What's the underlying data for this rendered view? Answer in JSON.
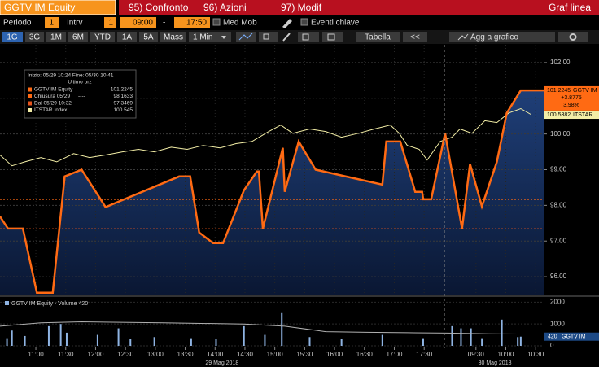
{
  "header": {
    "ticker": "GGTV IM Equity",
    "menu": [
      "95) Confronto",
      "96) Azioni",
      "97) Modif"
    ],
    "view": "Graf linea"
  },
  "toolbar": {
    "periodo": "Periodo",
    "periodo_value": "1",
    "intrv": "Intrv",
    "intrv_value": "1",
    "start": "09:00",
    "dash": "-",
    "end": "17:50",
    "med_mob": "Med Mob",
    "eventi": "Eventi chiave",
    "ranges": [
      "1G",
      "3G",
      "1M",
      "6M",
      "YTD",
      "1A",
      "5A",
      "Mass",
      "1 Min"
    ],
    "active_range": 0,
    "tabella": "Tabella",
    "back": "<<",
    "agg": "Agg a grafico"
  },
  "chart_data": [
    {
      "type": "line",
      "info": "Inizio: 05/29 10:24 Fine: 05/30 10:41",
      "value_title": "Ultimo prz",
      "xlim": [
        0,
        546
      ],
      "ylim": [
        95.5,
        102.5
      ],
      "xticks": [
        {
          "value": 36,
          "label": "11:00"
        },
        {
          "value": 66,
          "label": "11:30"
        },
        {
          "value": 96,
          "label": "12:00"
        },
        {
          "value": 126,
          "label": "12:30"
        },
        {
          "value": 156,
          "label": "13:00"
        },
        {
          "value": 186,
          "label": "13:30"
        },
        {
          "value": 216,
          "label": "14:00"
        },
        {
          "value": 246,
          "label": "14:30"
        },
        {
          "value": 276,
          "label": "15:00"
        },
        {
          "value": 306,
          "label": "15:30"
        },
        {
          "value": 336,
          "label": "16:00"
        },
        {
          "value": 366,
          "label": "16:30"
        },
        {
          "value": 396,
          "label": "17:00"
        },
        {
          "value": 426,
          "label": "17:30"
        },
        {
          "value": 478,
          "label": "09:30"
        },
        {
          "value": 508,
          "label": "10:00"
        },
        {
          "value": 538,
          "label": "10:30"
        }
      ],
      "yticks": [
        {
          "value": 96,
          "label": "96.00"
        },
        {
          "value": 97,
          "label": "97.00"
        },
        {
          "value": 98,
          "label": "98.00"
        },
        {
          "value": 99,
          "label": "99.00"
        },
        {
          "value": 100,
          "label": "100.00"
        },
        {
          "value": 101,
          "label": "101.00"
        },
        {
          "value": 102,
          "label": "102.00"
        }
      ],
      "grid": true,
      "series": [
        {
          "name": "GGTV IM Equity",
          "color": "#ff6a13",
          "legend_value": 101.2245,
          "fill": true,
          "x": [
            0,
            8,
            23,
            37,
            53,
            65,
            82,
            106,
            180,
            191,
            200,
            214,
            224,
            245,
            258,
            260,
            264,
            284,
            286,
            300,
            317,
            384,
            388,
            402,
            417,
            424,
            425,
            433,
            447,
            464,
            472,
            484,
            499,
            509,
            523,
            546
          ],
          "values": [
            97.69,
            97.35,
            97.35,
            95.55,
            95.55,
            98.81,
            99.0,
            97.95,
            98.81,
            98.81,
            97.24,
            96.94,
            96.94,
            98.42,
            98.95,
            98.95,
            97.35,
            99.61,
            98.38,
            99.79,
            99.0,
            98.58,
            99.79,
            99.79,
            98.38,
            98.38,
            98.17,
            98.17,
            100.02,
            97.35,
            99.16,
            97.97,
            99.22,
            100.59,
            101.22,
            101.22
          ]
        },
        {
          "name": "ITSTAR Index",
          "color": "#f3eea6",
          "legend_value": 100.545,
          "fill": false,
          "x": [
            0,
            12,
            25,
            41,
            57,
            74,
            90,
            106,
            123,
            139,
            155,
            172,
            188,
            204,
            221,
            237,
            253,
            270,
            282,
            294,
            311,
            327,
            343,
            360,
            376,
            392,
            401,
            409,
            421,
            429,
            442,
            454,
            462,
            474,
            487,
            499,
            511,
            523,
            533
          ],
          "values": [
            99.41,
            99.11,
            99.22,
            99.34,
            99.22,
            99.45,
            99.34,
            99.41,
            99.5,
            99.57,
            99.5,
            99.63,
            99.57,
            99.68,
            99.61,
            99.73,
            99.79,
            100.07,
            100.25,
            100.02,
            100.14,
            100.07,
            99.91,
            100.02,
            100.14,
            100.25,
            100.02,
            99.68,
            99.57,
            99.27,
            99.79,
            99.91,
            100.14,
            100.02,
            100.37,
            100.32,
            100.59,
            100.71,
            100.55
          ]
        }
      ],
      "reference_lines": [
        {
          "label": "Chiusura 05/29",
          "pattern": "----",
          "value": 98.1633,
          "color": "#ff6a13"
        },
        {
          "label": "Dal 05/29 10:32",
          "value": 97.3469,
          "color": "#e8541c"
        }
      ],
      "tags": [
        {
          "value": 101.2245,
          "text": "GGTV IM",
          "lines": [
            "+3.8775",
            "3.98%"
          ],
          "color": "#ff6a13"
        },
        {
          "value": 100.5382,
          "text": "ITSTAR",
          "color": "#f3eea6"
        }
      ]
    },
    {
      "type": "bar",
      "title": "GGTV IM Equity - Volume 420",
      "color": "#8fb4e3",
      "xlim": [
        0,
        546
      ],
      "ylim": [
        0,
        2200
      ],
      "yticks": [
        0,
        1000,
        2000
      ],
      "x": [
        7,
        12,
        25,
        49,
        61,
        67,
        98,
        119,
        131,
        155,
        192,
        217,
        245,
        266,
        283,
        311,
        343,
        384,
        425,
        454,
        463,
        473,
        484,
        504,
        520,
        523
      ],
      "values": [
        350,
        700,
        450,
        900,
        1000,
        600,
        500,
        800,
        300,
        400,
        350,
        300,
        900,
        500,
        1500,
        400,
        300,
        500,
        350,
        900,
        800,
        800,
        350,
        1200,
        400,
        420
      ],
      "average": {
        "color": "#b0b0b0",
        "x": [
          0,
          41,
          82,
          164,
          245,
          286,
          327,
          368,
          409,
          450,
          491,
          523
        ],
        "values": [
          900,
          1050,
          1100,
          1050,
          1000,
          900,
          650,
          620,
          600,
          580,
          550,
          540
        ]
      },
      "tag": {
        "value": 420,
        "text": "GGTV IM",
        "color": "#1d4a86"
      },
      "dates": [
        {
          "value": 223,
          "label": "29 Mag 2018"
        },
        {
          "value": 497,
          "label": "30 Mag 2018"
        }
      ]
    }
  ]
}
